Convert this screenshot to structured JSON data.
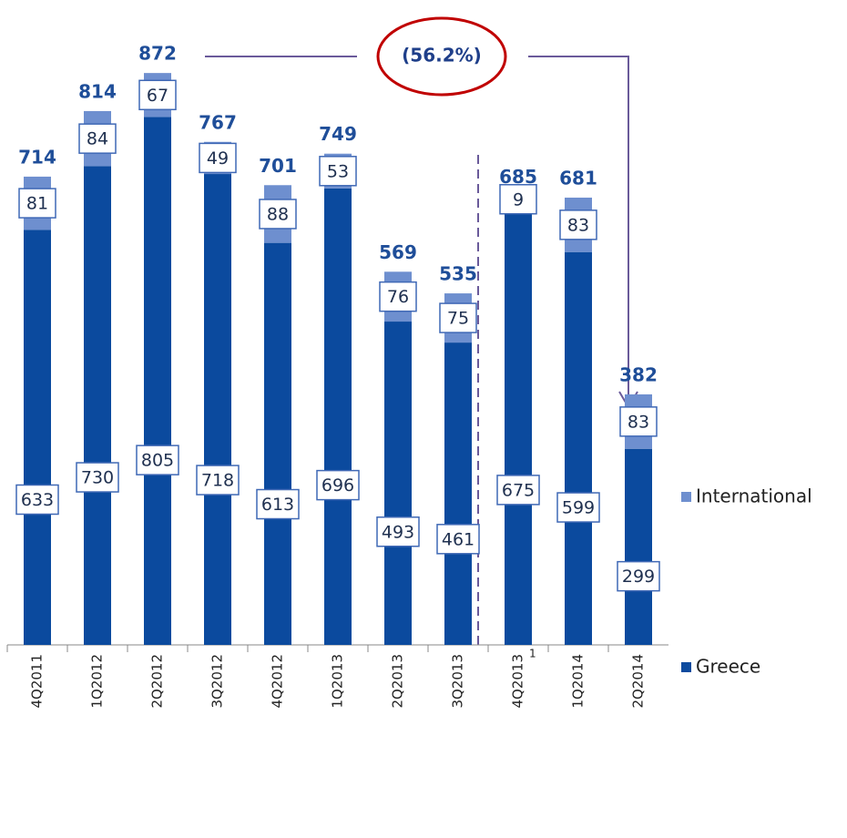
{
  "chart_data": {
    "type": "stacked_bar",
    "categories": [
      "4Q2011",
      "1Q2012",
      "2Q2012",
      "3Q2012",
      "4Q2012",
      "1Q2013",
      "2Q2013",
      "3Q2013",
      "4Q2013",
      "1Q2014",
      "2Q2014"
    ],
    "category_footnotes": [
      null,
      null,
      null,
      null,
      null,
      null,
      null,
      null,
      "1",
      null,
      null
    ],
    "series": [
      {
        "name": "Greece",
        "color": "#0b4a9e",
        "values": [
          633,
          730,
          805,
          718,
          613,
          696,
          493,
          461,
          675,
          599,
          299
        ]
      },
      {
        "name": "International",
        "color": "#6e8fcf",
        "values": [
          81,
          84,
          67,
          49,
          88,
          53,
          76,
          75,
          9,
          83,
          83
        ]
      }
    ],
    "totals": [
      714,
      814,
      872,
      767,
      701,
      749,
      569,
      535,
      685,
      681,
      382
    ],
    "annotation": "(56.2%)",
    "ylim": [
      0,
      900
    ]
  }
}
